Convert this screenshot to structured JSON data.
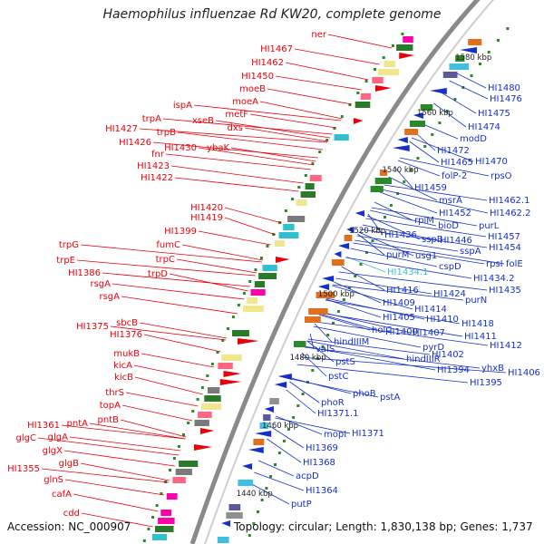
{
  "title": "Haemophilus influenzae Rd KW20, complete genome",
  "footer": {
    "accession": "Accession: NC_000907",
    "topology": "Topology: circular; Length: 1,830,138 bp; Genes: 1,737"
  },
  "colors": {
    "left_genes": "#e8000b",
    "right_genes": "#1530c8",
    "highlight_gene": "#3ab8e0",
    "backbone": "#888888",
    "tick_dots": "#2a8a2a"
  },
  "ruler_labels": [
    "1580 kbp",
    "1560 kbp",
    "1540 kbp",
    "1520 kbp",
    "1500 kbp",
    "1480 kbp",
    "1460 kbp",
    "1440 kbp"
  ],
  "left_labels": [
    "ner",
    "HI1467",
    "HI1462",
    "HI1450",
    "moeB",
    "moeA",
    "metF",
    "ispA",
    "xseB",
    "dxs",
    "trpA",
    "trpB",
    "HI1427",
    "HI1426",
    "HI1430",
    "ybaK",
    "fnr",
    "HI1423",
    "HI1422",
    "HI1420",
    "HI1419",
    "HI1399",
    "fumC",
    "trpG",
    "trpC",
    "trpE",
    "trpD",
    "HI1386",
    "rsgA",
    "rsgA",
    "HI1375",
    "sbcB",
    "HI1376",
    "mukB",
    "kicA",
    "kicB",
    "thrS",
    "topA",
    "pntB",
    "HI1361",
    "pntA",
    "glgC",
    "glgA",
    "glgX",
    "glgB",
    "HI1355",
    "glnS",
    "cafA",
    "cdd"
  ],
  "right_labels": [
    "HI1480",
    "HI1476",
    "HI1475",
    "HI1474",
    "modD",
    "HI1472",
    "HI1465",
    "HI1470",
    "folP-2",
    "rpsO",
    "HI1459",
    "msrA",
    "HI1462.1",
    "rplM",
    "HI1452",
    "HI1462.2",
    "bioD",
    "purL",
    "HI1436",
    "sspB",
    "HI1446",
    "HI1457",
    "purM",
    "usg1",
    "sspA",
    "HI1454",
    "rpsI",
    "folE",
    "HI1434.1",
    "cspD",
    "HI1434.2",
    "HI1416",
    "HI1424",
    "HI1435",
    "HI1409",
    "HI1414",
    "purN",
    "HI1405",
    "HI1410",
    "HI1418",
    "holC",
    "HI1400",
    "HI1407",
    "HI1411",
    "valS",
    "hindIIIM",
    "pyrD",
    "HI1412",
    "HI1402",
    "hindIIIR",
    "yhxB",
    "HI1394",
    "HI1406",
    "HI1395",
    "pstS",
    "pstC",
    "phoB",
    "pstA",
    "phoR",
    "HI1371.1",
    "HI1371",
    "mopI",
    "HI1369",
    "HI1368",
    "acpD",
    "HI1364",
    "putP"
  ]
}
